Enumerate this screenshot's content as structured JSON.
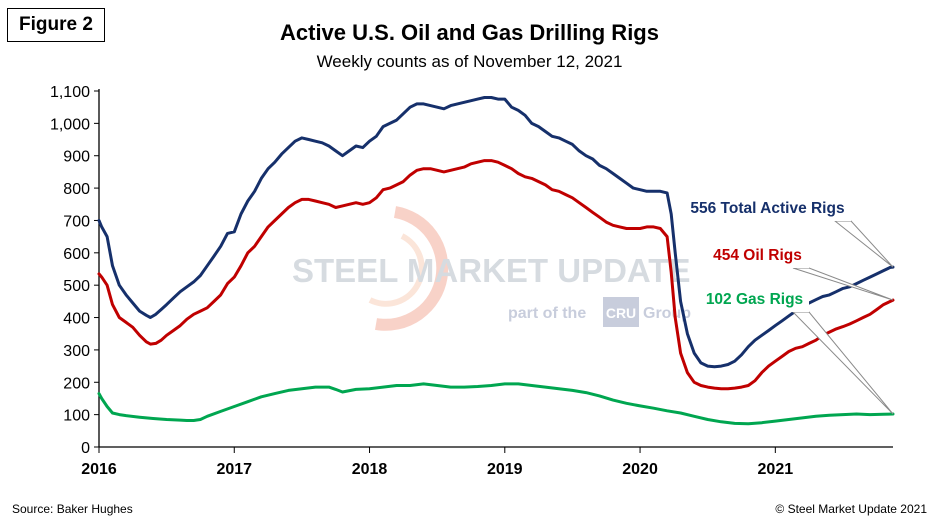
{
  "figure_label": "Figure 2",
  "source": "Source: Baker Hughes",
  "copyright": "© Steel Market Update 2021",
  "watermark": {
    "main": "STEEL MARKET UPDATE",
    "sub_prefix": "part of the",
    "sub_badge": "CRU",
    "sub_suffix": "Group"
  },
  "colors": {
    "total": "#16306b",
    "oil": "#c00000",
    "gas": "#00a650",
    "axis": "#000000"
  },
  "chart_data": {
    "type": "line",
    "title": "Active U.S. Oil and Gas Drilling Rigs",
    "subtitle": "Weekly counts as of November 12, 2021",
    "xlabel": "",
    "ylabel": "",
    "xlim": [
      2016.0,
      2021.87
    ],
    "ylim": [
      0,
      1100
    ],
    "y_ticks": [
      0,
      100,
      200,
      300,
      400,
      500,
      600,
      700,
      800,
      900,
      1000,
      1100
    ],
    "y_tick_labels": [
      "0",
      "100",
      "200",
      "300",
      "400",
      "500",
      "600",
      "700",
      "800",
      "900",
      "1,000",
      "1,100"
    ],
    "x_ticks": [
      2016,
      2017,
      2018,
      2019,
      2020,
      2021
    ],
    "x_tick_labels": [
      "2016",
      "2017",
      "2018",
      "2019",
      "2020",
      "2021"
    ],
    "grid": false,
    "legend": "none",
    "annotations": [
      {
        "text": "556 Total Active Rigs",
        "series": "total"
      },
      {
        "text": "454 Oil Rigs",
        "series": "oil"
      },
      {
        "text": "102 Gas Rigs",
        "series": "gas"
      }
    ],
    "series": [
      {
        "key": "total",
        "x": [
          2016.0,
          2016.02,
          2016.06,
          2016.1,
          2016.15,
          2016.2,
          2016.25,
          2016.3,
          2016.35,
          2016.38,
          2016.42,
          2016.46,
          2016.5,
          2016.55,
          2016.6,
          2016.65,
          2016.7,
          2016.75,
          2016.8,
          2016.85,
          2016.9,
          2016.95,
          2017.0,
          2017.05,
          2017.1,
          2017.15,
          2017.2,
          2017.25,
          2017.3,
          2017.35,
          2017.4,
          2017.45,
          2017.5,
          2017.55,
          2017.6,
          2017.65,
          2017.7,
          2017.75,
          2017.8,
          2017.85,
          2017.9,
          2017.95,
          2018.0,
          2018.05,
          2018.1,
          2018.15,
          2018.2,
          2018.25,
          2018.3,
          2018.35,
          2018.4,
          2018.45,
          2018.5,
          2018.55,
          2018.6,
          2018.65,
          2018.7,
          2018.75,
          2018.8,
          2018.85,
          2018.9,
          2018.95,
          2019.0,
          2019.05,
          2019.1,
          2019.15,
          2019.2,
          2019.25,
          2019.3,
          2019.35,
          2019.4,
          2019.45,
          2019.5,
          2019.55,
          2019.6,
          2019.65,
          2019.7,
          2019.75,
          2019.8,
          2019.85,
          2019.9,
          2019.95,
          2020.0,
          2020.05,
          2020.1,
          2020.15,
          2020.2,
          2020.23,
          2020.26,
          2020.3,
          2020.35,
          2020.4,
          2020.45,
          2020.5,
          2020.55,
          2020.6,
          2020.65,
          2020.7,
          2020.75,
          2020.8,
          2020.85,
          2020.9,
          2020.95,
          2021.0,
          2021.05,
          2021.1,
          2021.15,
          2021.2,
          2021.25,
          2021.3,
          2021.35,
          2021.4,
          2021.45,
          2021.5,
          2021.55,
          2021.6,
          2021.65,
          2021.7,
          2021.75,
          2021.8,
          2021.85,
          2021.87
        ],
        "y": [
          700,
          680,
          650,
          560,
          500,
          470,
          445,
          420,
          407,
          400,
          410,
          425,
          440,
          460,
          480,
          495,
          510,
          530,
          560,
          590,
          620,
          660,
          665,
          720,
          760,
          790,
          830,
          860,
          880,
          905,
          925,
          945,
          955,
          950,
          945,
          940,
          930,
          915,
          900,
          915,
          930,
          925,
          945,
          960,
          990,
          1000,
          1010,
          1030,
          1050,
          1060,
          1060,
          1055,
          1050,
          1045,
          1055,
          1060,
          1065,
          1070,
          1075,
          1080,
          1080,
          1075,
          1075,
          1050,
          1040,
          1025,
          1000,
          990,
          975,
          960,
          955,
          945,
          935,
          915,
          900,
          890,
          870,
          860,
          845,
          830,
          815,
          800,
          795,
          790,
          790,
          790,
          785,
          720,
          600,
          450,
          350,
          290,
          260,
          250,
          248,
          250,
          255,
          265,
          285,
          310,
          330,
          345,
          360,
          375,
          390,
          405,
          420,
          435,
          445,
          455,
          465,
          470,
          480,
          490,
          495,
          505,
          515,
          525,
          535,
          545,
          555,
          556
        ]
      },
      {
        "key": "oil",
        "x": [
          2016.0,
          2016.02,
          2016.06,
          2016.1,
          2016.15,
          2016.2,
          2016.25,
          2016.3,
          2016.35,
          2016.38,
          2016.42,
          2016.46,
          2016.5,
          2016.55,
          2016.6,
          2016.65,
          2016.7,
          2016.75,
          2016.8,
          2016.85,
          2016.9,
          2016.95,
          2017.0,
          2017.05,
          2017.1,
          2017.15,
          2017.2,
          2017.25,
          2017.3,
          2017.35,
          2017.4,
          2017.45,
          2017.5,
          2017.55,
          2017.6,
          2017.65,
          2017.7,
          2017.75,
          2017.8,
          2017.85,
          2017.9,
          2017.95,
          2018.0,
          2018.05,
          2018.1,
          2018.15,
          2018.2,
          2018.25,
          2018.3,
          2018.35,
          2018.4,
          2018.45,
          2018.5,
          2018.55,
          2018.6,
          2018.65,
          2018.7,
          2018.75,
          2018.8,
          2018.85,
          2018.9,
          2018.95,
          2019.0,
          2019.05,
          2019.1,
          2019.15,
          2019.2,
          2019.25,
          2019.3,
          2019.35,
          2019.4,
          2019.45,
          2019.5,
          2019.55,
          2019.6,
          2019.65,
          2019.7,
          2019.75,
          2019.8,
          2019.85,
          2019.9,
          2019.95,
          2020.0,
          2020.05,
          2020.1,
          2020.15,
          2020.2,
          2020.23,
          2020.26,
          2020.3,
          2020.35,
          2020.4,
          2020.45,
          2020.5,
          2020.55,
          2020.6,
          2020.65,
          2020.7,
          2020.75,
          2020.8,
          2020.85,
          2020.9,
          2020.95,
          2021.0,
          2021.05,
          2021.1,
          2021.15,
          2021.2,
          2021.25,
          2021.3,
          2021.35,
          2021.4,
          2021.45,
          2021.5,
          2021.55,
          2021.6,
          2021.65,
          2021.7,
          2021.75,
          2021.8,
          2021.85,
          2021.87
        ],
        "y": [
          535,
          525,
          500,
          440,
          400,
          385,
          370,
          345,
          325,
          318,
          320,
          330,
          345,
          360,
          375,
          395,
          410,
          420,
          430,
          450,
          470,
          505,
          525,
          560,
          600,
          620,
          650,
          680,
          700,
          720,
          740,
          755,
          765,
          765,
          760,
          755,
          750,
          740,
          745,
          750,
          755,
          750,
          755,
          770,
          795,
          800,
          810,
          820,
          840,
          855,
          860,
          860,
          855,
          850,
          855,
          860,
          865,
          875,
          880,
          885,
          885,
          880,
          870,
          860,
          845,
          835,
          830,
          820,
          810,
          795,
          790,
          780,
          770,
          755,
          740,
          725,
          710,
          695,
          685,
          680,
          675,
          675,
          675,
          680,
          680,
          675,
          650,
          540,
          400,
          290,
          230,
          200,
          190,
          185,
          182,
          180,
          180,
          182,
          185,
          190,
          205,
          230,
          250,
          265,
          280,
          295,
          305,
          310,
          320,
          330,
          345,
          355,
          365,
          372,
          380,
          390,
          400,
          410,
          425,
          440,
          450,
          454
        ]
      },
      {
        "key": "gas",
        "x": [
          2016.0,
          2016.02,
          2016.06,
          2016.1,
          2016.15,
          2016.2,
          2016.3,
          2016.4,
          2016.5,
          2016.6,
          2016.65,
          2016.7,
          2016.75,
          2016.8,
          2016.9,
          2017.0,
          2017.1,
          2017.2,
          2017.3,
          2017.4,
          2017.5,
          2017.6,
          2017.7,
          2017.75,
          2017.8,
          2017.9,
          2018.0,
          2018.1,
          2018.2,
          2018.3,
          2018.4,
          2018.5,
          2018.6,
          2018.7,
          2018.8,
          2018.9,
          2019.0,
          2019.1,
          2019.2,
          2019.3,
          2019.4,
          2019.5,
          2019.6,
          2019.7,
          2019.8,
          2019.9,
          2020.0,
          2020.1,
          2020.2,
          2020.3,
          2020.4,
          2020.5,
          2020.6,
          2020.7,
          2020.8,
          2020.9,
          2021.0,
          2021.1,
          2021.2,
          2021.3,
          2021.4,
          2021.5,
          2021.6,
          2021.7,
          2021.8,
          2021.87
        ],
        "y": [
          165,
          150,
          125,
          105,
          100,
          97,
          92,
          88,
          85,
          83,
          82,
          82,
          85,
          95,
          110,
          125,
          140,
          155,
          165,
          175,
          180,
          185,
          185,
          178,
          170,
          178,
          180,
          185,
          190,
          190,
          195,
          190,
          185,
          185,
          187,
          190,
          195,
          195,
          190,
          185,
          180,
          175,
          168,
          158,
          145,
          135,
          127,
          120,
          112,
          105,
          95,
          85,
          78,
          73,
          72,
          75,
          80,
          85,
          90,
          95,
          98,
          100,
          102,
          100,
          101,
          102
        ]
      }
    ]
  }
}
